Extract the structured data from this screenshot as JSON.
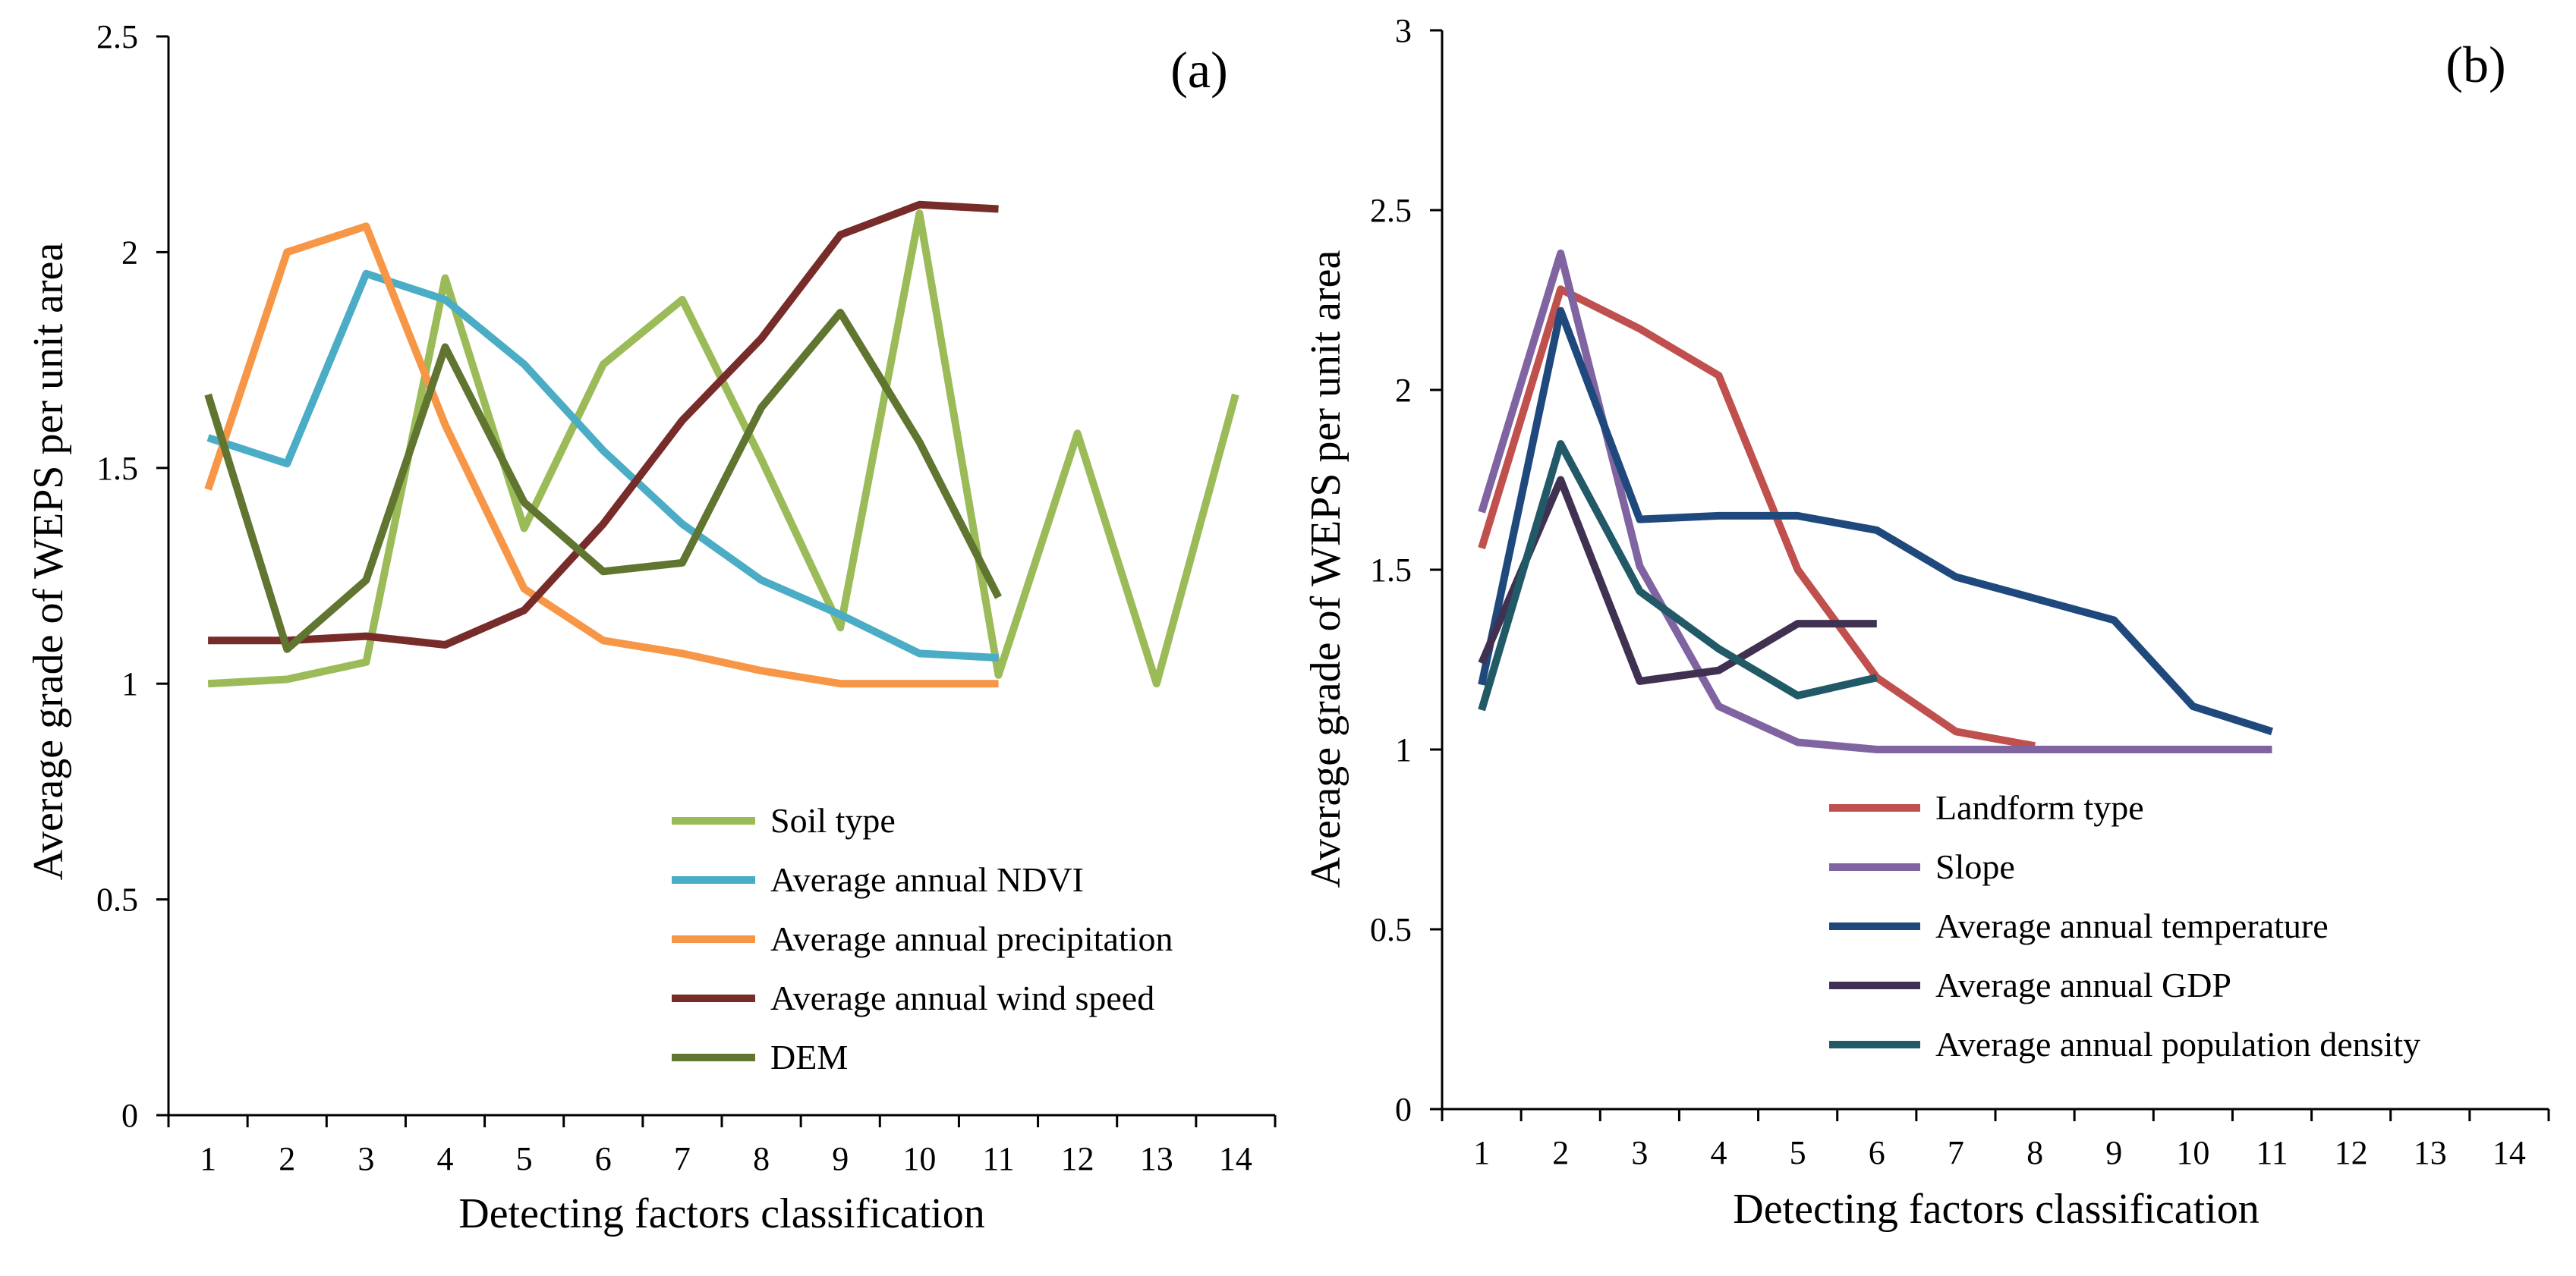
{
  "chart_data": [
    {
      "type": "line",
      "panel_label": "(a)",
      "title": "",
      "xlabel": "Detecting factors classification",
      "ylabel": "Average grade of  WEPS  per unit area",
      "xlim": [
        0.5,
        14.5
      ],
      "ylim": [
        0,
        2.5
      ],
      "xticks": [
        "1",
        "2",
        "3",
        "4",
        "5",
        "6",
        "7",
        "8",
        "9",
        "10",
        "11",
        "12",
        "13",
        "14"
      ],
      "yticks": [
        "0",
        "0.5",
        "1",
        "1.5",
        "2",
        "2.5"
      ],
      "legend_position": "bottom-right",
      "series": [
        {
          "name": "Soil type",
          "color": "#9BBB59",
          "x": [
            1,
            2,
            3,
            4,
            5,
            6,
            7,
            8,
            9,
            10,
            11,
            12,
            13,
            14
          ],
          "values": [
            1.0,
            1.01,
            1.05,
            1.94,
            1.36,
            1.74,
            1.89,
            1.52,
            1.13,
            2.09,
            1.02,
            1.58,
            1.0,
            1.67
          ]
        },
        {
          "name": "Average annual NDVI",
          "color": "#4BACC6",
          "x": [
            1,
            2,
            3,
            4,
            5,
            6,
            7,
            8,
            9,
            10,
            11
          ],
          "values": [
            1.57,
            1.51,
            1.95,
            1.89,
            1.74,
            1.54,
            1.37,
            1.24,
            1.16,
            1.07,
            1.06
          ]
        },
        {
          "name": "Average annual precipitation",
          "color": "#F79646",
          "x": [
            1,
            2,
            3,
            4,
            5,
            6,
            7,
            8,
            9,
            10,
            11
          ],
          "values": [
            1.45,
            2.0,
            2.06,
            1.6,
            1.22,
            1.1,
            1.07,
            1.03,
            1.0,
            1.0,
            1.0
          ]
        },
        {
          "name": "Average annual wind speed",
          "color": "#772C2A",
          "x": [
            1,
            2,
            3,
            4,
            5,
            6,
            7,
            8,
            9,
            10,
            11
          ],
          "values": [
            1.1,
            1.1,
            1.11,
            1.09,
            1.17,
            1.37,
            1.61,
            1.8,
            2.04,
            2.11,
            2.1
          ]
        },
        {
          "name": "DEM",
          "color": "#5F7530",
          "x": [
            1,
            2,
            3,
            4,
            5,
            6,
            7,
            8,
            9,
            10,
            11
          ],
          "values": [
            1.67,
            1.08,
            1.24,
            1.78,
            1.42,
            1.26,
            1.28,
            1.64,
            1.86,
            1.56,
            1.2
          ]
        }
      ]
    },
    {
      "type": "line",
      "panel_label": "(b)",
      "title": "",
      "xlabel": "Detecting factors classification",
      "ylabel": "Average grade of  WEPS  per unit area",
      "xlim": [
        0.5,
        14.5
      ],
      "ylim": [
        0,
        3
      ],
      "xticks": [
        "1",
        "2",
        "3",
        "4",
        "5",
        "6",
        "7",
        "8",
        "9",
        "10",
        "11",
        "12",
        "13",
        "14"
      ],
      "yticks": [
        "0",
        "0.5",
        "1",
        "1.5",
        "2",
        "2.5",
        "3"
      ],
      "legend_position": "bottom-right",
      "series": [
        {
          "name": "Landform type",
          "color": "#C0504D",
          "x": [
            1,
            2,
            3,
            4,
            5,
            6,
            7,
            8
          ],
          "values": [
            1.56,
            2.28,
            2.17,
            2.04,
            1.5,
            1.2,
            1.05,
            1.01
          ]
        },
        {
          "name": "Slope",
          "color": "#8064A2",
          "x": [
            1,
            2,
            3,
            4,
            5,
            6,
            7,
            8,
            9,
            10,
            11
          ],
          "values": [
            1.66,
            2.38,
            1.51,
            1.12,
            1.02,
            1.0,
            1.0,
            1.0,
            1.0,
            1.0,
            1.0
          ]
        },
        {
          "name": "Average annual temperature",
          "color": "#1F497D",
          "x": [
            1,
            2,
            3,
            4,
            5,
            6,
            7,
            8,
            9,
            10,
            11
          ],
          "values": [
            1.18,
            2.22,
            1.64,
            1.65,
            1.65,
            1.61,
            1.48,
            1.42,
            1.36,
            1.12,
            1.05
          ]
        },
        {
          "name": "Average annual GDP",
          "color": "#403152",
          "x": [
            1,
            2,
            3,
            4,
            5,
            6
          ],
          "values": [
            1.24,
            1.75,
            1.19,
            1.22,
            1.35,
            1.35
          ]
        },
        {
          "name": "Average annual population density",
          "color": "#215967",
          "x": [
            1,
            2,
            3,
            4,
            5,
            6
          ],
          "values": [
            1.11,
            1.85,
            1.44,
            1.28,
            1.15,
            1.2
          ]
        }
      ]
    }
  ]
}
